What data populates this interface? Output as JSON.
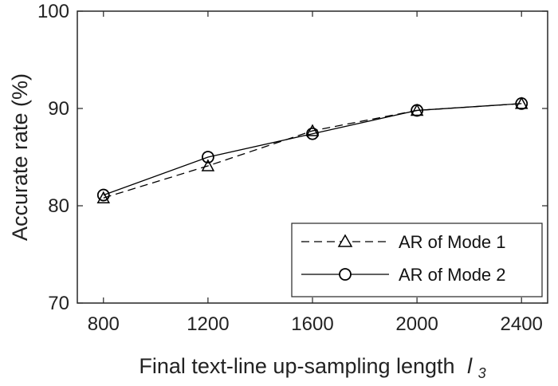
{
  "chart_data": {
    "type": "line",
    "x": [
      800,
      1200,
      1600,
      2000,
      2400
    ],
    "xticks": [
      "800",
      "1200",
      "1600",
      "2000",
      "2400"
    ],
    "yticks": [
      "70",
      "80",
      "90",
      "100"
    ],
    "xlim": [
      700,
      2500
    ],
    "ylim": [
      70,
      100
    ],
    "xlabel": "Final text-line up-sampling length",
    "xlabel_var": "l",
    "xlabel_sub": "3",
    "ylabel": "Accurate rate (%)",
    "legend_position": "bottom-right",
    "grid": false,
    "series": [
      {
        "name": "AR of Mode 1",
        "values": [
          80.8,
          84.1,
          87.7,
          89.8,
          90.5
        ],
        "marker": "triangle",
        "line": "dashed",
        "color": "#000000"
      },
      {
        "name": "AR of Mode 2",
        "values": [
          81.1,
          85.0,
          87.4,
          89.8,
          90.5
        ],
        "marker": "circle",
        "line": "solid",
        "color": "#000000"
      }
    ]
  }
}
